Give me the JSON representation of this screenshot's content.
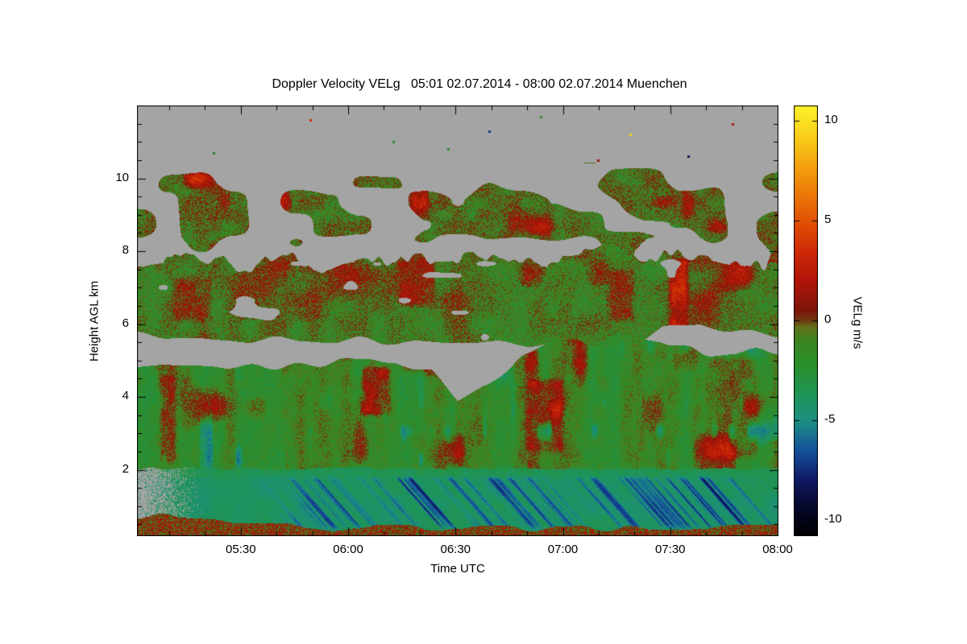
{
  "page": {
    "background_color": "#FFFFFF"
  },
  "chart_data": {
    "type": "heatmap",
    "title": "Doppler Velocity VELg   05:01 02.07.2014 - 08:00 02.07.2014 Muenchen",
    "station": "Muenchen",
    "time_start_utc": "05:01 02.07.2014",
    "time_end_utc": "08:00 02.07.2014",
    "xlabel": "Time UTC",
    "ylabel": "Height AGL km",
    "colorbar_label": "VELg m/s",
    "x_ticks": [
      "05:30",
      "06:00",
      "06:30",
      "07:00",
      "07:30",
      "08:00"
    ],
    "x_tick_minutes": [
      29,
      59,
      89,
      119,
      149,
      179
    ],
    "x_total_minutes": 179,
    "y_ticks": [
      2,
      4,
      6,
      8,
      10
    ],
    "y_range_km": [
      0.2,
      12.0
    ],
    "colorbar_ticks": [
      10,
      5,
      0,
      -5,
      -10
    ],
    "value_range": [
      -10.75,
      10.75
    ],
    "no_data_color": "#A4A4A4",
    "grid": false,
    "legend_position": "right-colorbar",
    "colormap_stops": [
      {
        "v": -10.75,
        "c": "#000000"
      },
      {
        "v": -9.2,
        "c": "#06082E"
      },
      {
        "v": -7.8,
        "c": "#101D6B"
      },
      {
        "v": -6.4,
        "c": "#15559B"
      },
      {
        "v": -5.0,
        "c": "#1C8F80"
      },
      {
        "v": -3.6,
        "c": "#1F9455"
      },
      {
        "v": -2.2,
        "c": "#2A8F2A"
      },
      {
        "v": -1.0,
        "c": "#3C8422"
      },
      {
        "v": -0.3,
        "c": "#63701A"
      },
      {
        "v": 0.0,
        "c": "#6E3A10"
      },
      {
        "v": 0.5,
        "c": "#7E150B"
      },
      {
        "v": 2.0,
        "c": "#B01408"
      },
      {
        "v": 3.5,
        "c": "#CE2B06"
      },
      {
        "v": 5.0,
        "c": "#E25205"
      },
      {
        "v": 7.0,
        "c": "#F08C0A"
      },
      {
        "v": 9.0,
        "c": "#F7C918"
      },
      {
        "v": 10.75,
        "c": "#FCF32A"
      }
    ],
    "boundaries": {
      "boundary_layer_top_km": 2.04,
      "lower_cloud_top_km": [
        [
          0,
          4.9
        ],
        [
          0.4,
          4.95
        ],
        [
          0.46,
          4.65
        ],
        [
          0.5,
          3.9
        ],
        [
          0.545,
          4.35
        ],
        [
          0.6,
          5.2
        ],
        [
          0.65,
          5.55
        ],
        [
          0.78,
          5.6
        ],
        [
          0.83,
          5.3
        ],
        [
          0.93,
          5.25
        ],
        [
          1,
          5.35
        ]
      ],
      "mid_cloud_bottom_km": [
        [
          0,
          5.65
        ],
        [
          0.3,
          5.6
        ],
        [
          0.45,
          5.55
        ],
        [
          0.6,
          5.45
        ],
        [
          0.65,
          5.35
        ],
        [
          0.78,
          5.45
        ],
        [
          0.82,
          5.95
        ],
        [
          0.88,
          6.05
        ],
        [
          0.93,
          5.9
        ],
        [
          1,
          5.75
        ]
      ],
      "mid_cloud_top_km": [
        [
          0,
          7.5
        ],
        [
          0.06,
          7.9
        ],
        [
          0.13,
          7.6
        ],
        [
          0.2,
          7.8
        ],
        [
          0.3,
          7.75
        ],
        [
          0.42,
          7.7
        ],
        [
          0.5,
          7.9
        ],
        [
          0.58,
          7.75
        ],
        [
          0.68,
          8.0
        ],
        [
          0.78,
          7.9
        ],
        [
          0.88,
          8.05
        ],
        [
          1,
          7.85
        ]
      ],
      "upper_patch_band_km": [
        8.0,
        10.45
      ],
      "surface_band_top_km": 0.45
    },
    "mean_velocity_ms": {
      "boundary_layer": -4.0,
      "fall_streaks": -8.0,
      "lower_cloud": -1.7,
      "mid_cloud": -1.3,
      "upper_patches": -1.1,
      "surface_band": 0.7
    },
    "features": [
      {
        "t": [
          0.03,
          0.065
        ],
        "h": [
          2.1,
          4.7
        ],
        "dv": 2.6
      },
      {
        "t": [
          0.05,
          0.12
        ],
        "h": [
          6.0,
          7.4
        ],
        "dv": 1.6
      },
      {
        "t": [
          0.345,
          0.4
        ],
        "h": [
          3.4,
          4.95
        ],
        "dv": 3.0
      },
      {
        "t": [
          0.4,
          0.47
        ],
        "h": [
          6.4,
          7.9
        ],
        "dv": 2.2
      },
      {
        "t": [
          0.42,
          0.46
        ],
        "h": [
          8.8,
          9.9
        ],
        "dv": 2.4
      },
      {
        "t": [
          0.6,
          0.67
        ],
        "h": [
          2.4,
          4.6
        ],
        "dv": 2.2
      },
      {
        "t": [
          0.73,
          0.78
        ],
        "h": [
          6.0,
          7.6
        ],
        "dv": 1.8
      },
      {
        "t": [
          0.825,
          0.865
        ],
        "h": [
          5.6,
          7.9
        ],
        "dv": 3.4
      },
      {
        "t": [
          0.845,
          0.875
        ],
        "h": [
          8.8,
          9.8
        ],
        "dv": 2.0
      },
      {
        "t": [
          0.88,
          0.975
        ],
        "h": [
          2.2,
          5.2
        ],
        "dv": 1.6
      }
    ],
    "specks": [
      {
        "t": 0.27,
        "h": 11.6,
        "v": 3.5
      },
      {
        "t": 0.4,
        "h": 11.0,
        "v": -2.0
      },
      {
        "t": 0.55,
        "h": 11.3,
        "v": -7.0
      },
      {
        "t": 0.63,
        "h": 11.7,
        "v": -1.5
      },
      {
        "t": 0.77,
        "h": 11.2,
        "v": 9.5
      },
      {
        "t": 0.86,
        "h": 10.6,
        "v": -8.0
      },
      {
        "t": 0.93,
        "h": 11.5,
        "v": 2.5
      },
      {
        "t": 0.12,
        "h": 10.7,
        "v": -1.8
      },
      {
        "t": 0.485,
        "h": 10.8,
        "v": -2.5
      },
      {
        "t": 0.72,
        "h": 10.5,
        "v": 1.5
      }
    ]
  }
}
